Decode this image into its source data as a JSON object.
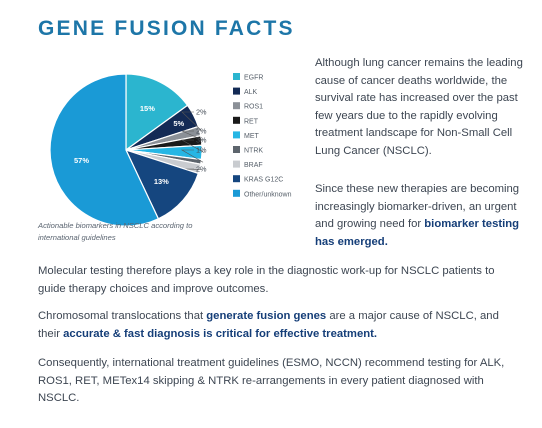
{
  "header": {
    "title": "GENE FUSION FACTS"
  },
  "chart_data": {
    "type": "pie",
    "title": "",
    "series_labels": [
      "EGFR",
      "ALK",
      "ROS1",
      "RET",
      "MET",
      "NTRK",
      "BRAF",
      "KRAS G12C",
      "Other/unknown"
    ],
    "values": [
      15,
      5,
      2,
      2,
      3,
      1,
      2,
      13,
      57
    ],
    "value_labels": [
      "15%",
      "5%",
      "2%",
      "2%",
      "3%",
      "1%",
      "2%",
      "13%",
      "57%"
    ],
    "colors": [
      "#2bb5cf",
      "#132a55",
      "#8b9097",
      "#1a1a1a",
      "#26b6e4",
      "#5d656d",
      "#c9ccd0",
      "#15467f",
      "#1a9ad6"
    ],
    "legend_position": "right"
  },
  "caption": {
    "line1": "Actionable biomarkers in NSCLC according to",
    "line2": "international guidelines"
  },
  "right_text": {
    "p1": "Although lung cancer remains the leading cause of cancer deaths worldwide, the survival rate has increased over the past few years due to the rapidly evolving treatment landscape for Non-Small Cell Lung Cancer (NSCLC).",
    "p2_a": "Since these new therapies are becoming increasingly biomarker-driven, an urgent and growing need for ",
    "p2_b": "biomarker testing has emerged."
  },
  "body_text": {
    "p3": "Molecular testing therefore plays a key role in the diagnostic work-up for NSCLC patients to guide therapy choices and improve outcomes.",
    "p4_a": "Chromosomal translocations that ",
    "p4_b": "generate fusion genes",
    "p4_c": " are a major cause of NSCLC, and their ",
    "p4_d": "accurate & fast diagnosis is critical for effective treatment.",
    "p5": "Consequently, international treatment guidelines (ESMO, NCCN) recommend testing for ALK, ROS1, RET, METex14 skipping & NTRK re-arrangements in every patient diagnosed with NSCLC."
  }
}
